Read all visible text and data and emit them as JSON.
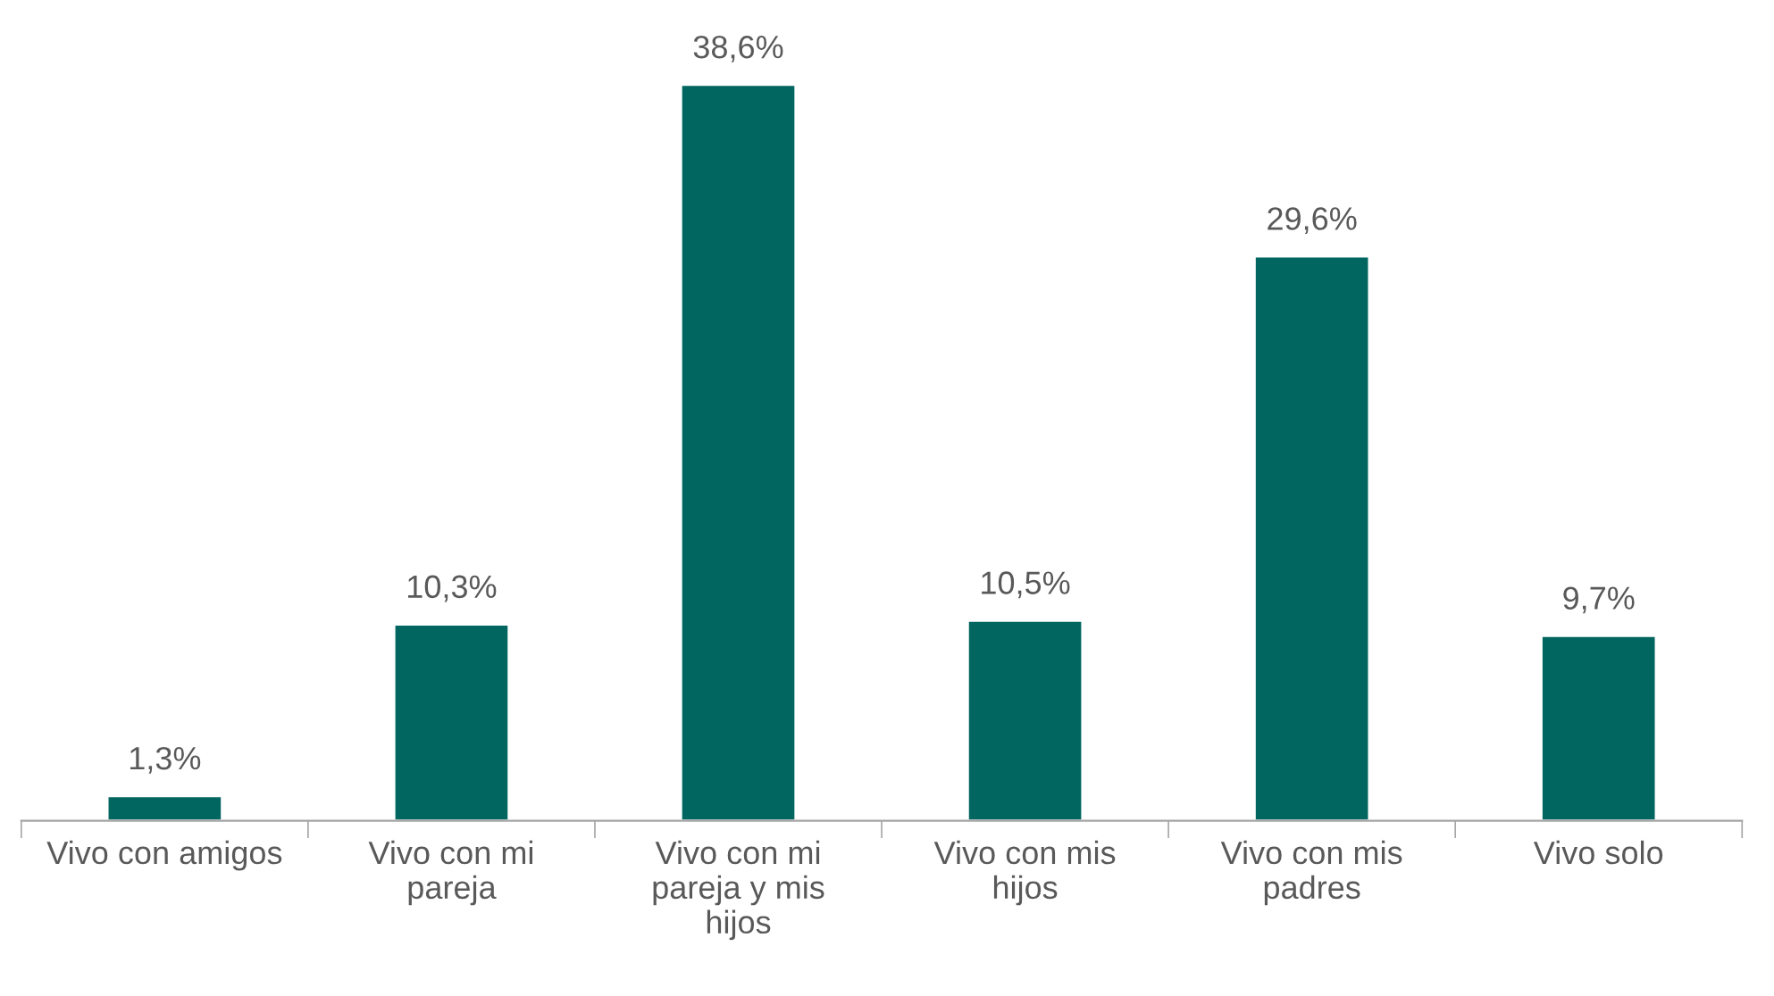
{
  "chart_data": {
    "type": "bar",
    "categories": [
      "Vivo con amigos",
      "Vivo con mi pareja",
      "Vivo con mi pareja y mis hijos",
      "Vivo con mis hijos",
      "Vivo con mis padres",
      "Vivo solo"
    ],
    "values": [
      1.3,
      10.3,
      38.6,
      10.5,
      29.6,
      9.7
    ],
    "value_labels": [
      "1,3%",
      "10,3%",
      "38,6%",
      "10,5%",
      "29,6%",
      "9,7%"
    ],
    "color": "#00665f",
    "grid": false,
    "legend": false
  }
}
